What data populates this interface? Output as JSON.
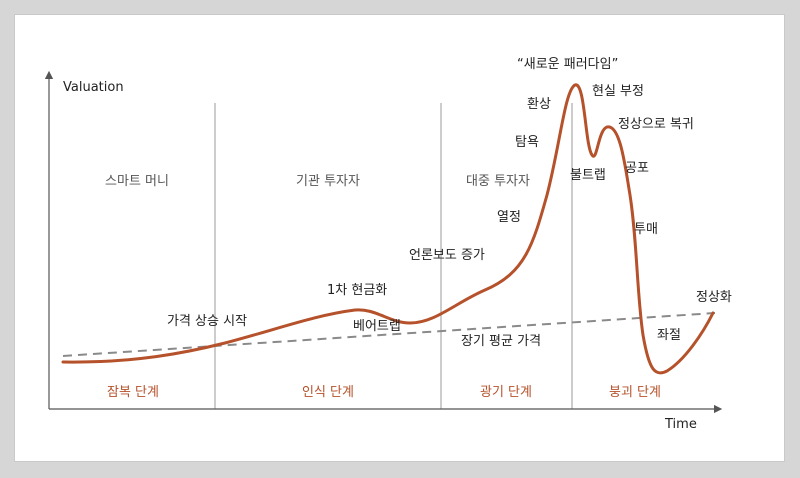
{
  "chart_data": {
    "type": "line",
    "xlabel": "Time",
    "ylabel": "Valuation",
    "colors": {
      "curve": "#b5522b",
      "trend": "#8a8a8a",
      "axis": "#555555",
      "divider": "#9a9a9a",
      "phase_label": "#b5522b",
      "investor_label": "#555555"
    },
    "investor_groups": [
      "스마트 머니",
      "기관 투자자",
      "대중 투자자"
    ],
    "phases": [
      "잠복 단계",
      "인식 단계",
      "광기 단계",
      "붕괴 단계"
    ],
    "trend_label": "장기 평균 가격",
    "annotations": [
      "가격 상승 시작",
      "1차 현금화",
      "베어트랩",
      "언론보도 증가",
      "열정",
      "탐욕",
      "환상",
      "“새로운 패러다임”",
      "현실 부정",
      "정상으로 복귀",
      "불트랩",
      "공포",
      "투매",
      "좌절",
      "정상화"
    ]
  }
}
